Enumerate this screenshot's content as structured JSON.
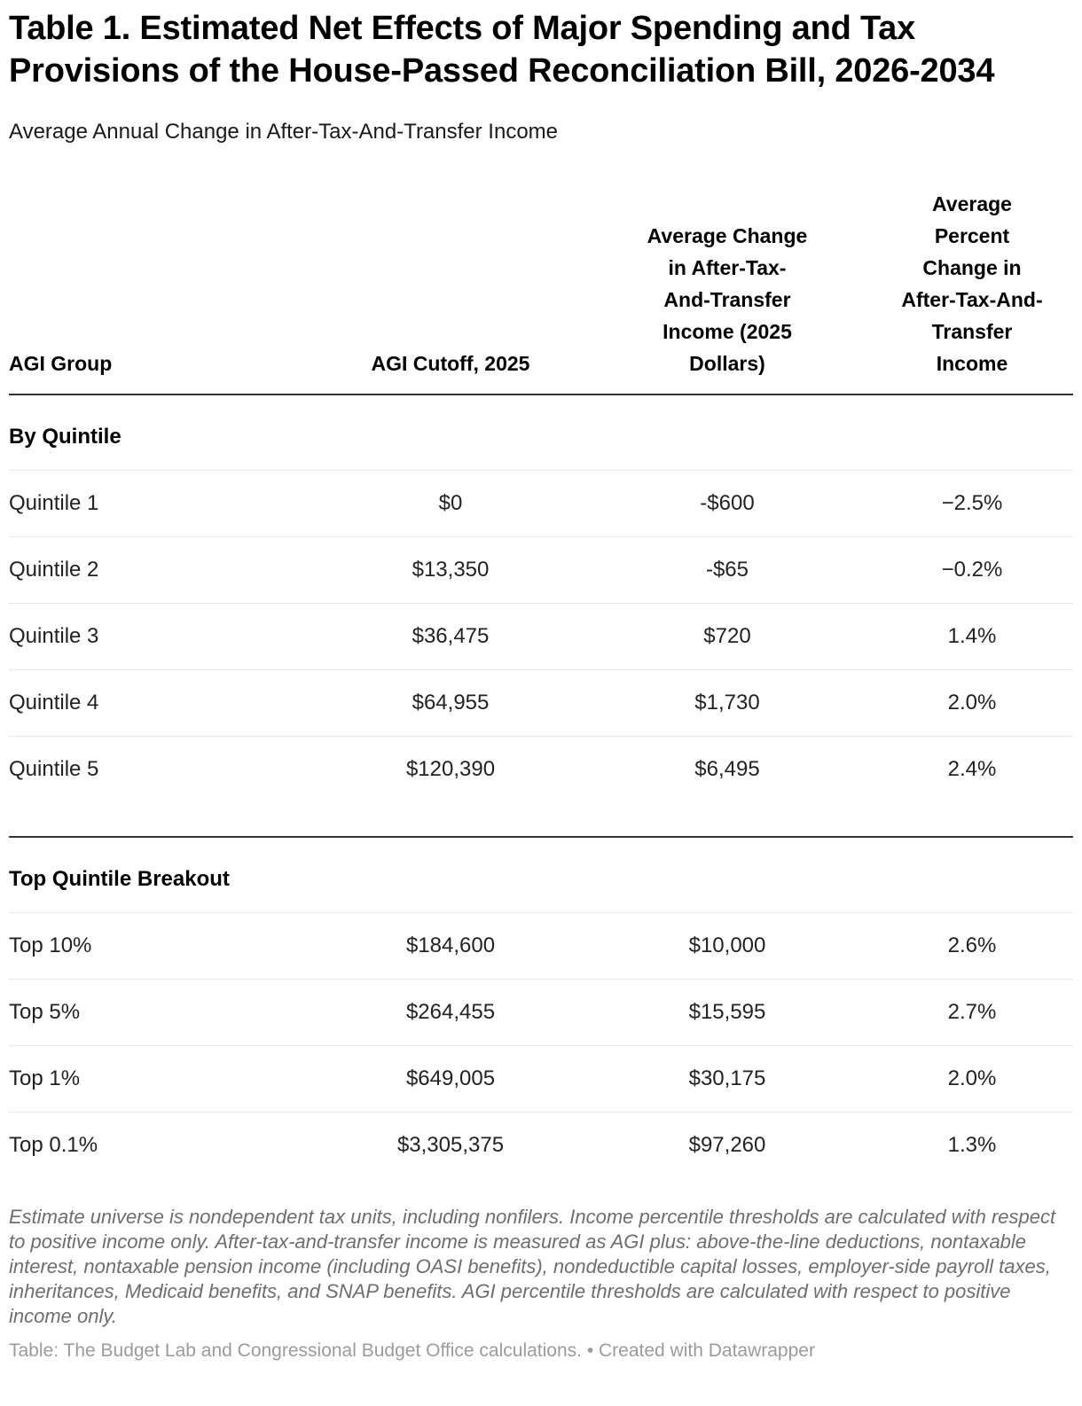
{
  "chart_data": {
    "type": "table",
    "title": "Table 1. Estimated Net Effects of Major Spending and Tax Provisions of the House-Passed Reconciliation Bill, 2026-2034",
    "subtitle": "Average Annual Change in After-Tax-And-Transfer Income",
    "columns": [
      "AGI Group",
      "AGI Cutoff, 2025",
      "Average Change in After-Tax-And-Transfer Income (2025 Dollars)",
      "Average Percent Change in After-Tax-And-Transfer Income"
    ],
    "column_display": [
      "AGI Group",
      "AGI Cutoff, 2025",
      "Average Change\nin After-Tax-\nAnd-Transfer\nIncome (2025\nDollars)",
      "Average\nPercent\nChange in\nAfter-Tax-And-\nTransfer\nIncome"
    ],
    "sections": [
      {
        "heading": "By Quintile",
        "rows": [
          {
            "agi_group": "Quintile 1",
            "agi_cutoff": "$0",
            "avg_change": "-$600",
            "avg_pct_change": "−2.5%"
          },
          {
            "agi_group": "Quintile 2",
            "agi_cutoff": "$13,350",
            "avg_change": "-$65",
            "avg_pct_change": "−0.2%"
          },
          {
            "agi_group": "Quintile 3",
            "agi_cutoff": "$36,475",
            "avg_change": "$720",
            "avg_pct_change": "1.4%"
          },
          {
            "agi_group": "Quintile 4",
            "agi_cutoff": "$64,955",
            "avg_change": "$1,730",
            "avg_pct_change": "2.0%"
          },
          {
            "agi_group": "Quintile 5",
            "agi_cutoff": "$120,390",
            "avg_change": "$6,495",
            "avg_pct_change": "2.4%"
          }
        ]
      },
      {
        "heading": "Top Quintile Breakout",
        "rows": [
          {
            "agi_group": "Top 10%",
            "agi_cutoff": "$184,600",
            "avg_change": "$10,000",
            "avg_pct_change": "2.6%"
          },
          {
            "agi_group": "Top 5%",
            "agi_cutoff": "$264,455",
            "avg_change": "$15,595",
            "avg_pct_change": "2.7%"
          },
          {
            "agi_group": "Top 1%",
            "agi_cutoff": "$649,005",
            "avg_change": "$30,175",
            "avg_pct_change": "2.0%"
          },
          {
            "agi_group": "Top 0.1%",
            "agi_cutoff": "$3,305,375",
            "avg_change": "$97,260",
            "avg_pct_change": "1.3%"
          }
        ]
      }
    ],
    "note": "Estimate universe is nondependent tax units, including nonfilers. Income percentile thresholds are calculated with respect to positive income only. After-tax-and-transfer income is measured as AGI plus: above-the-line deductions, nontaxable interest, nontaxable pension income (including OASI benefits), nondeductible capital losses, employer-side payroll taxes, inheritances, Medicaid benefits, and SNAP benefits. AGI percentile thresholds are calculated with respect to positive income only.",
    "source": "Table: The Budget Lab and Congressional Budget Office calculations. • Created with Datawrapper",
    "layout_hints": {
      "grid": "horizontal rules only",
      "section_divider_color": "#333333",
      "row_rule_color": "#e8e8e8"
    }
  },
  "colors": {
    "title_text": "#000000",
    "body_text": "#222222",
    "thick_rule": "#333333",
    "light_rule": "#e8e8e8",
    "note_text": "#6e6e6e",
    "source_text": "#9b9b9b",
    "background": "#ffffff"
  }
}
